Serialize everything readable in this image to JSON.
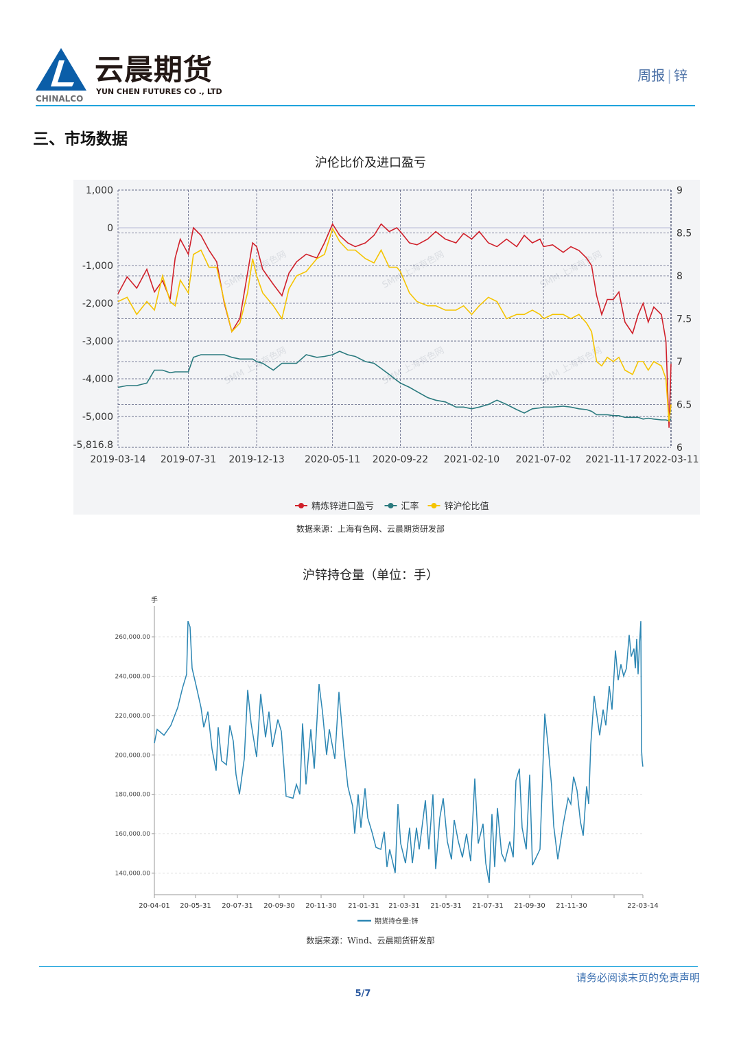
{
  "header": {
    "brand_cn": "云晨期货",
    "brand_en": "YUN CHEN FUTURES CO ., LTD",
    "logo_text": "CHINALCO",
    "report_type": "周报",
    "report_commodity": "锌",
    "accent_color": "#1ea3dc"
  },
  "section_title": "三、市场数据",
  "footer": {
    "disclaimer": "请务必阅读末页的免责声明",
    "page": "5/7"
  },
  "chart_data": [
    {
      "type": "line",
      "title": "沪伦比价及进口盈亏",
      "source": "数据来源：上海有色网、云晨期货研发部",
      "watermark": "SMM 上海有色网",
      "background": "#f3f4f6",
      "grid": true,
      "legend_position": "bottom",
      "x_ticks": [
        "2019-03-14",
        "2019-07-31",
        "2019-12-13",
        "2020-05-11",
        "2020-09-22",
        "2021-02-10",
        "2021-07-02",
        "2021-11-17",
        "2022-03-11"
      ],
      "y_left": {
        "ticks": [
          "1,000",
          "0",
          "-1,000",
          "-2,000",
          "-3,000",
          "-4,000",
          "-5,000",
          "-5,816.8"
        ],
        "range": [
          -5816.8,
          1000
        ]
      },
      "y_right": {
        "ticks": [
          "9",
          "8.5",
          "8",
          "7.5",
          "7",
          "6.5",
          "6"
        ],
        "range": [
          6,
          9
        ]
      },
      "x": [
        "2019-03-14",
        "2019-04-01",
        "2019-04-20",
        "2019-05-10",
        "2019-05-25",
        "2019-06-10",
        "2019-06-25",
        "2019-07-05",
        "2019-07-15",
        "2019-07-31",
        "2019-08-10",
        "2019-08-25",
        "2019-09-10",
        "2019-09-25",
        "2019-10-10",
        "2019-10-25",
        "2019-11-10",
        "2019-11-25",
        "2019-12-05",
        "2019-12-13",
        "2019-12-25",
        "2020-01-15",
        "2020-02-01",
        "2020-02-15",
        "2020-03-01",
        "2020-03-20",
        "2020-04-10",
        "2020-04-25",
        "2020-05-11",
        "2020-05-25",
        "2020-06-10",
        "2020-06-25",
        "2020-07-15",
        "2020-08-01",
        "2020-08-15",
        "2020-08-31",
        "2020-09-15",
        "2020-09-22",
        "2020-10-10",
        "2020-10-25",
        "2020-11-15",
        "2020-12-01",
        "2020-12-20",
        "2021-01-10",
        "2021-01-25",
        "2021-02-10",
        "2021-02-25",
        "2021-03-15",
        "2021-04-01",
        "2021-04-20",
        "2021-05-10",
        "2021-05-25",
        "2021-06-10",
        "2021-06-25",
        "2021-07-02",
        "2021-07-20",
        "2021-08-10",
        "2021-08-25",
        "2021-09-10",
        "2021-09-25",
        "2021-10-05",
        "2021-10-15",
        "2021-10-25",
        "2021-11-05",
        "2021-11-17",
        "2021-11-28",
        "2021-12-10",
        "2021-12-25",
        "2022-01-05",
        "2022-01-15",
        "2022-01-25",
        "2022-02-05",
        "2022-02-20",
        "2022-03-01",
        "2022-03-07",
        "2022-03-11"
      ],
      "series": [
        {
          "name": "精炼锌进口盈亏",
          "axis": "left",
          "color": "#d0202a",
          "values": [
            -1750,
            -1300,
            -1600,
            -1100,
            -1700,
            -1400,
            -1900,
            -800,
            -300,
            -700,
            0,
            -200,
            -600,
            -900,
            -2000,
            -2750,
            -2400,
            -1200,
            -400,
            -500,
            -1100,
            -1500,
            -1800,
            -1200,
            -900,
            -700,
            -800,
            -400,
            100,
            -200,
            -400,
            -500,
            -400,
            -200,
            100,
            -100,
            0,
            -100,
            -400,
            -450,
            -300,
            -100,
            -300,
            -400,
            -150,
            -300,
            -100,
            -400,
            -500,
            -300,
            -500,
            -200,
            -400,
            -300,
            -500,
            -450,
            -650,
            -500,
            -600,
            -800,
            -1000,
            -1800,
            -2300,
            -1900,
            -1900,
            -1700,
            -2500,
            -2800,
            -2300,
            -2000,
            -2500,
            -2100,
            -2300,
            -3000,
            -5300,
            -3600
          ]
        },
        {
          "name": "汇率",
          "axis": "right",
          "color": "#2a7a7e",
          "values": [
            6.7,
            6.72,
            6.72,
            6.75,
            6.9,
            6.9,
            6.87,
            6.88,
            6.88,
            6.88,
            7.05,
            7.08,
            7.08,
            7.08,
            7.08,
            7.05,
            7.03,
            7.03,
            7.03,
            7.0,
            6.98,
            6.9,
            6.98,
            6.98,
            6.98,
            7.08,
            7.05,
            7.06,
            7.08,
            7.12,
            7.08,
            7.06,
            7.0,
            6.98,
            6.92,
            6.85,
            6.78,
            6.75,
            6.7,
            6.65,
            6.58,
            6.55,
            6.53,
            6.47,
            6.47,
            6.45,
            6.47,
            6.5,
            6.55,
            6.5,
            6.44,
            6.4,
            6.45,
            6.46,
            6.47,
            6.47,
            6.48,
            6.47,
            6.45,
            6.44,
            6.42,
            6.38,
            6.38,
            6.38,
            6.37,
            6.37,
            6.35,
            6.35,
            6.35,
            6.33,
            6.34,
            6.33,
            6.32,
            6.32,
            6.31,
            6.33
          ]
        },
        {
          "name": "锌沪伦比值",
          "axis": "right",
          "color": "#f5c400",
          "values": [
            7.7,
            7.75,
            7.55,
            7.7,
            7.6,
            8.0,
            7.7,
            7.65,
            7.95,
            7.8,
            8.25,
            8.3,
            8.1,
            8.1,
            7.7,
            7.35,
            7.45,
            7.8,
            8.2,
            8.0,
            7.8,
            7.65,
            7.5,
            7.85,
            8.0,
            8.05,
            8.2,
            8.25,
            8.55,
            8.4,
            8.3,
            8.3,
            8.2,
            8.15,
            8.3,
            8.1,
            8.1,
            8.05,
            7.8,
            7.7,
            7.65,
            7.65,
            7.6,
            7.6,
            7.65,
            7.55,
            7.65,
            7.75,
            7.7,
            7.5,
            7.55,
            7.55,
            7.6,
            7.55,
            7.5,
            7.55,
            7.55,
            7.5,
            7.55,
            7.45,
            7.35,
            7.0,
            6.95,
            7.05,
            7.0,
            7.05,
            6.9,
            6.85,
            7.0,
            7.0,
            6.9,
            7.0,
            6.95,
            6.8,
            6.3,
            6.5
          ]
        }
      ]
    },
    {
      "type": "line",
      "title": "沪锌持仓量（单位：手）",
      "source": "数据来源：Wind、云晨期货研发部",
      "y_unit": "手",
      "grid": true,
      "legend_position": "bottom",
      "x_ticks": [
        "20-04-01",
        "20-05-31",
        "20-07-31",
        "20-09-30",
        "20-11-30",
        "21-01-31",
        "21-03-31",
        "21-05-31",
        "21-07-31",
        "21-09-30",
        "21-11-30",
        "22-03-14"
      ],
      "y_ticks": [
        "260,000.00",
        "240,000.00",
        "220,000.00",
        "200,000.00",
        "180,000.00",
        "160,000.00",
        "140,000.00"
      ],
      "ylim": [
        129000,
        274000
      ],
      "series": [
        {
          "name": "期货持仓量:锌",
          "color": "#2c86b3",
          "x": [
            "20-04-01",
            "20-04-05",
            "20-04-15",
            "20-04-25",
            "20-05-05",
            "20-05-12",
            "20-05-18",
            "20-05-20",
            "20-05-23",
            "20-05-26",
            "20-06-01",
            "20-06-08",
            "20-06-12",
            "20-06-18",
            "20-06-24",
            "20-06-30",
            "20-07-03",
            "20-07-08",
            "20-07-15",
            "20-07-20",
            "20-07-25",
            "20-07-29",
            "20-08-03",
            "20-08-10",
            "20-08-15",
            "20-08-20",
            "20-08-28",
            "20-09-03",
            "20-09-10",
            "20-09-15",
            "20-09-20",
            "20-09-28",
            "20-10-03",
            "20-10-10",
            "20-10-20",
            "20-10-25",
            "20-10-30",
            "20-11-03",
            "20-11-08",
            "20-11-15",
            "20-11-20",
            "20-11-27",
            "20-12-02",
            "20-12-08",
            "20-12-12",
            "20-12-20",
            "20-12-26",
            "21-01-02",
            "21-01-08",
            "21-01-15",
            "21-01-18",
            "21-01-23",
            "21-01-27",
            "21-02-02",
            "21-02-06",
            "21-02-12",
            "21-02-18",
            "21-02-25",
            "21-03-02",
            "21-03-06",
            "21-03-10",
            "21-03-18",
            "21-03-22",
            "21-03-26",
            "21-04-02",
            "21-04-08",
            "21-04-12",
            "21-04-18",
            "21-04-22",
            "21-05-01",
            "21-05-06",
            "21-05-12",
            "21-05-16",
            "21-05-22",
            "21-05-27",
            "21-06-02",
            "21-06-08",
            "21-06-12",
            "21-06-18",
            "21-06-24",
            "21-06-30",
            "21-07-06",
            "21-07-12",
            "21-07-17",
            "21-07-24",
            "21-07-28",
            "21-08-02",
            "21-08-06",
            "21-08-10",
            "21-08-14",
            "21-08-20",
            "21-08-25",
            "21-09-01",
            "21-09-06",
            "21-09-10",
            "21-09-15",
            "21-09-19",
            "21-09-25",
            "21-09-30",
            "21-10-04",
            "21-10-15",
            "21-10-22",
            "21-10-27",
            "21-11-01",
            "21-11-04",
            "21-11-10",
            "21-11-18",
            "21-11-25",
            "21-11-29",
            "21-12-03",
            "21-12-08",
            "21-12-13",
            "21-12-17",
            "21-12-22",
            "21-12-25",
            "21-12-28",
            "22-01-02",
            "22-01-06",
            "22-01-10",
            "22-01-15",
            "22-01-19",
            "22-01-24",
            "22-01-28",
            "22-02-02",
            "22-02-06",
            "22-02-10",
            "22-02-14",
            "22-02-18",
            "22-02-22",
            "22-02-25",
            "22-03-01",
            "22-03-03",
            "22-03-05",
            "22-03-07",
            "22-03-09",
            "22-03-11",
            "22-03-12",
            "22-03-13",
            "22-03-14"
          ],
          "values": [
            206000,
            213000,
            210000,
            215000,
            224000,
            234000,
            241000,
            268000,
            265000,
            244000,
            235000,
            224000,
            214000,
            222000,
            203000,
            192000,
            214000,
            197000,
            195000,
            215000,
            207000,
            190000,
            180000,
            198000,
            233000,
            216000,
            199000,
            231000,
            209000,
            222000,
            204000,
            218000,
            212000,
            179000,
            178000,
            185000,
            180000,
            216000,
            185000,
            213000,
            193000,
            236000,
            222000,
            200000,
            213000,
            198000,
            232000,
            204000,
            184000,
            174000,
            160000,
            180000,
            163000,
            183000,
            168000,
            161000,
            153000,
            152000,
            161000,
            143000,
            152000,
            140000,
            175000,
            155000,
            145000,
            163000,
            145000,
            163000,
            152000,
            177000,
            152000,
            180000,
            142000,
            168000,
            178000,
            156000,
            147000,
            167000,
            156000,
            148000,
            160000,
            146000,
            188000,
            155000,
            165000,
            145000,
            135000,
            170000,
            143000,
            173000,
            150000,
            146000,
            156000,
            148000,
            187000,
            193000,
            163000,
            152000,
            190000,
            144000,
            152000,
            221000,
            204000,
            184000,
            164000,
            147000,
            165000,
            178000,
            175000,
            189000,
            182000,
            166000,
            159000,
            184000,
            175000,
            205000,
            230000,
            220000,
            210000,
            223000,
            215000,
            235000,
            223000,
            253000,
            238000,
            246000,
            240000,
            244000,
            261000,
            250000,
            254000,
            244000,
            259000,
            241000,
            256000,
            268000,
            203000,
            197000,
            194000
          ]
        }
      ]
    }
  ]
}
